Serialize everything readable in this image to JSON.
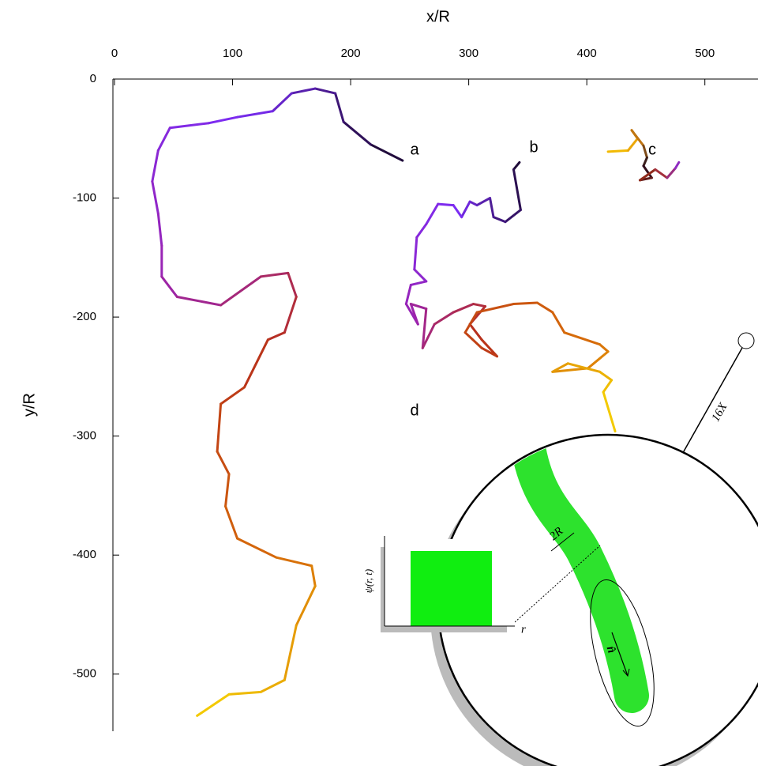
{
  "chart_data": {
    "type": "line",
    "x_label": "x/R",
    "y_label": "y/R",
    "xlim": [
      0,
      545
    ],
    "xticks": [
      0,
      100,
      200,
      300,
      400,
      500
    ],
    "ylim": [
      -548,
      0
    ],
    "yticks": [
      0,
      -100,
      -200,
      -300,
      -400,
      -500
    ],
    "annotations": [
      "a",
      "b",
      "c",
      "d"
    ],
    "series": [
      {
        "colors": [
          "#1a0a2e",
          "#7b2cf5",
          "#9b23b0",
          "#b8301a",
          "#d66a0a",
          "#f5d000"
        ],
        "x": [
          244,
          217,
          194,
          187,
          170,
          150,
          134,
          104,
          80,
          47,
          37,
          32,
          37,
          40,
          40,
          53,
          90,
          124,
          147,
          154,
          144,
          130,
          110,
          90,
          87,
          97,
          94,
          104,
          137,
          167,
          170,
          154,
          144,
          124,
          97,
          70
        ],
        "values": [
          -68.5,
          -55,
          -36,
          -12,
          -8,
          -12,
          -27,
          -32,
          -37,
          -41,
          -60,
          -86,
          -113,
          -140,
          -166,
          -183,
          -190,
          -166,
          -163,
          -183,
          -213,
          -219,
          -259,
          -273,
          -313,
          -332,
          -359,
          -386,
          -402,
          -409,
          -426,
          -459,
          -505,
          -515,
          -517,
          -535
        ]
      },
      {
        "colors": [
          "#1a0a2e",
          "#7b2cf5",
          "#9b23b0",
          "#b8301a",
          "#d66a0a",
          "#f5d000"
        ],
        "x": [
          343,
          338,
          344,
          331,
          321,
          318,
          307,
          301,
          294,
          287,
          274,
          264,
          256,
          254,
          264,
          251,
          247,
          257,
          251,
          264,
          261,
          271,
          287,
          304,
          314,
          301,
          311,
          324,
          311,
          297,
          307,
          338,
          358,
          371,
          381,
          411,
          418,
          401,
          371,
          384,
          411,
          421,
          414,
          424
        ],
        "values": [
          -70,
          -76,
          -110,
          -120,
          -116,
          -100,
          -106,
          -103,
          -116,
          -106,
          -105,
          -122,
          -133,
          -160,
          -170,
          -173,
          -189,
          -206,
          -189,
          -193,
          -226,
          -206,
          -196,
          -189,
          -191,
          -206,
          -219,
          -233,
          -226,
          -213,
          -196,
          -189,
          -188,
          -196,
          -213,
          -223,
          -229,
          -243,
          -246,
          -239,
          -246,
          -253,
          -263,
          -296
        ]
      },
      {
        "colors": [
          "#f5c400",
          "#e08a10",
          "#1a0a1e",
          "#a8301a",
          "#8a2be2"
        ],
        "x": [
          418,
          435,
          443,
          438,
          448,
          451,
          448,
          455,
          445,
          458,
          468,
          475,
          478
        ],
        "values": [
          -61,
          -60,
          -50,
          -43,
          -56,
          -66,
          -73,
          -83,
          -85,
          -76,
          -83,
          -75,
          -70
        ]
      }
    ],
    "inset_labels": {
      "psi": "ψ(r, t)",
      "r": "r",
      "width": "2R",
      "direction": "n̂",
      "zoom": "16X"
    }
  }
}
